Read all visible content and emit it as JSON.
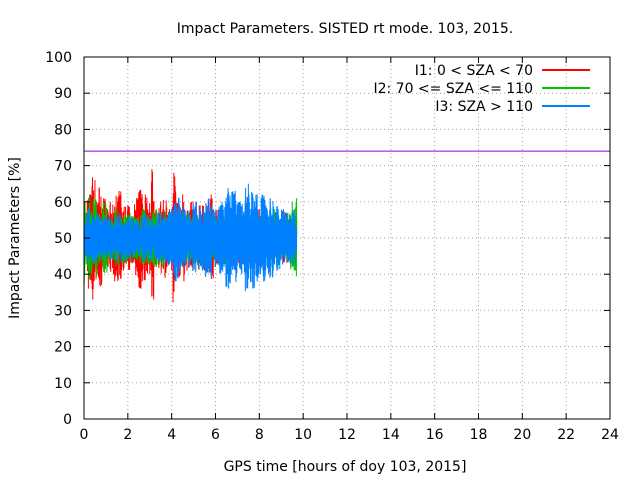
{
  "chart_data": {
    "type": "line",
    "title": "Impact Parameters. SISTED rt mode. 103, 2015.",
    "xlabel": "GPS time [hours of doy 103, 2015]",
    "ylabel": "Impact Parameters [%]",
    "xlim": [
      0,
      24
    ],
    "ylim": [
      0,
      100
    ],
    "x_ticks": [
      0,
      2,
      4,
      6,
      8,
      10,
      12,
      14,
      16,
      18,
      20,
      22,
      24
    ],
    "y_ticks": [
      0,
      10,
      20,
      30,
      40,
      50,
      60,
      70,
      80,
      90,
      100
    ],
    "grid": true,
    "legend_position": "top-right",
    "reference_line": {
      "y": 74,
      "color": "#9400d3"
    },
    "series": [
      {
        "name": "I1: 0 < SZA < 70",
        "color": "#ff0000",
        "x_start": 0,
        "x_end": 9.7,
        "center": 50,
        "points": [
          [
            0.0,
            48
          ],
          [
            0.1,
            57
          ],
          [
            0.2,
            36
          ],
          [
            0.3,
            62
          ],
          [
            0.4,
            33
          ],
          [
            0.5,
            66
          ],
          [
            0.6,
            40
          ],
          [
            0.7,
            64
          ],
          [
            0.8,
            37
          ],
          [
            0.9,
            61
          ],
          [
            1.1,
            42
          ],
          [
            1.2,
            60
          ],
          [
            1.4,
            38
          ],
          [
            1.6,
            63
          ],
          [
            1.8,
            41
          ],
          [
            2.0,
            59
          ],
          [
            2.2,
            43
          ],
          [
            2.4,
            61
          ],
          [
            2.6,
            36
          ],
          [
            2.8,
            62
          ],
          [
            3.0,
            40
          ],
          [
            3.1,
            69
          ],
          [
            3.3,
            42
          ],
          [
            3.5,
            60
          ],
          [
            3.7,
            39
          ],
          [
            3.9,
            58
          ],
          [
            4.0,
            41
          ],
          [
            4.1,
            68
          ],
          [
            4.3,
            39
          ],
          [
            4.5,
            62
          ],
          [
            4.7,
            41
          ],
          [
            4.9,
            60
          ],
          [
            5.1,
            43
          ],
          [
            5.3,
            59
          ],
          [
            5.5,
            41
          ],
          [
            5.8,
            62
          ],
          [
            6.0,
            42
          ],
          [
            6.2,
            58
          ],
          [
            6.5,
            44
          ],
          [
            6.8,
            58
          ],
          [
            7.1,
            42
          ],
          [
            7.4,
            57
          ],
          [
            7.7,
            43
          ],
          [
            8.0,
            58
          ],
          [
            8.3,
            44
          ],
          [
            8.6,
            56
          ],
          [
            8.9,
            45
          ],
          [
            9.2,
            57
          ],
          [
            9.5,
            44
          ],
          [
            9.7,
            56
          ]
        ]
      },
      {
        "name": "I2: 70 <= SZA <= 110",
        "color": "#00c000",
        "x_start": 0,
        "x_end": 9.7,
        "center": 50,
        "points": [
          [
            0.0,
            33
          ],
          [
            0.05,
            60
          ],
          [
            0.15,
            42
          ],
          [
            0.25,
            62
          ],
          [
            0.35,
            40
          ],
          [
            0.5,
            61
          ],
          [
            0.7,
            43
          ],
          [
            0.9,
            60
          ],
          [
            1.2,
            44
          ],
          [
            1.5,
            58
          ],
          [
            1.8,
            43
          ],
          [
            2.1,
            57
          ],
          [
            2.4,
            44
          ],
          [
            2.7,
            58
          ],
          [
            3.0,
            43
          ],
          [
            3.3,
            58
          ],
          [
            3.6,
            42
          ],
          [
            3.9,
            57
          ],
          [
            4.2,
            43
          ],
          [
            4.5,
            57
          ],
          [
            4.8,
            43
          ],
          [
            5.1,
            58
          ],
          [
            5.4,
            43
          ],
          [
            5.7,
            57
          ],
          [
            6.0,
            44
          ],
          [
            6.3,
            58
          ],
          [
            6.6,
            43
          ],
          [
            6.9,
            57
          ],
          [
            7.2,
            43
          ],
          [
            7.5,
            58
          ],
          [
            7.8,
            44
          ],
          [
            8.1,
            57
          ],
          [
            8.4,
            43
          ],
          [
            8.7,
            58
          ],
          [
            9.0,
            44
          ],
          [
            9.3,
            57
          ],
          [
            9.5,
            60
          ],
          [
            9.6,
            41
          ],
          [
            9.7,
            61
          ]
        ]
      },
      {
        "name": "I3: SZA > 110",
        "color": "#0080ff",
        "x_start": 0,
        "x_end": 9.7,
        "center": 50,
        "points": [
          [
            0.0,
            55
          ],
          [
            0.1,
            45
          ],
          [
            0.2,
            58
          ],
          [
            0.4,
            43
          ],
          [
            0.6,
            57
          ],
          [
            0.8,
            44
          ],
          [
            1.0,
            56
          ],
          [
            1.3,
            44
          ],
          [
            1.6,
            57
          ],
          [
            1.9,
            44
          ],
          [
            2.2,
            56
          ],
          [
            2.5,
            45
          ],
          [
            2.8,
            57
          ],
          [
            3.1,
            44
          ],
          [
            3.4,
            57
          ],
          [
            3.7,
            43
          ],
          [
            4.0,
            58
          ],
          [
            4.2,
            38
          ],
          [
            4.5,
            59
          ],
          [
            4.8,
            42
          ],
          [
            5.1,
            60
          ],
          [
            5.4,
            41
          ],
          [
            5.7,
            61
          ],
          [
            6.0,
            42
          ],
          [
            6.3,
            60
          ],
          [
            6.6,
            36
          ],
          [
            6.9,
            63
          ],
          [
            7.2,
            40
          ],
          [
            7.5,
            65
          ],
          [
            7.7,
            36
          ],
          [
            7.9,
            62
          ],
          [
            8.2,
            38
          ],
          [
            8.5,
            61
          ],
          [
            8.8,
            41
          ],
          [
            9.1,
            58
          ],
          [
            9.4,
            43
          ],
          [
            9.6,
            58
          ],
          [
            9.7,
            47
          ]
        ]
      }
    ]
  }
}
